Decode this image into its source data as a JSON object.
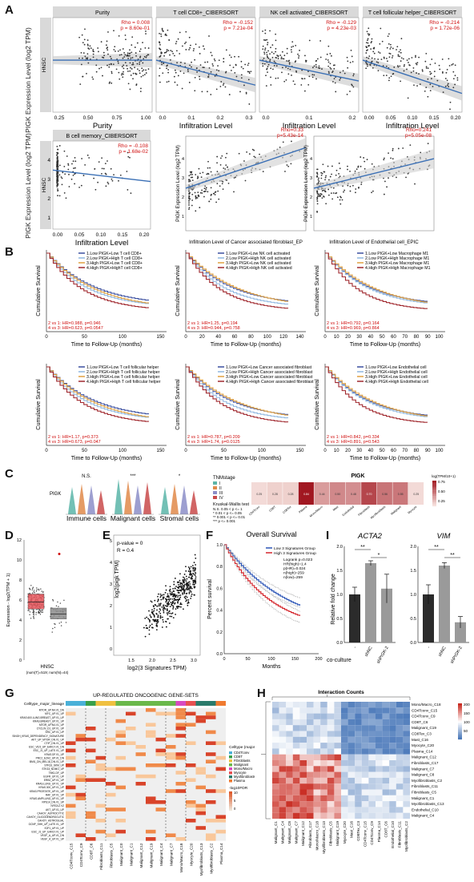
{
  "panels": {
    "A": "A",
    "B": "B",
    "C": "C",
    "D": "D",
    "E": "E",
    "F": "F",
    "G": "G",
    "H": "H",
    "I": "I"
  },
  "panel_a": {
    "ylabel": "PIGK Expression Level (log2 TPM)",
    "ylabel2": "PIGK Expression Level (log2 TPM)",
    "side_label": "HNSC",
    "row1": [
      {
        "title": "Purity",
        "rho": "Rho = 0.008",
        "p": "p = 8.60e-01",
        "xlabel": "Purity",
        "ticks": [
          "0.25",
          "0.50",
          "0.75",
          "1.00"
        ]
      },
      {
        "title": "T cell CD8+_CIBERSORT",
        "rho": "Rho = -0.152",
        "p": "p = 7.21e-04",
        "xlabel": "Infiltration Level",
        "ticks": [
          "0.0",
          "0.1",
          "0.2",
          "0.3"
        ]
      },
      {
        "title": "NK cell activated_CIBERSORT",
        "rho": "Rho = -0.129",
        "p": "p = 4.23e-03",
        "xlabel": "Infiltration Level",
        "ticks": [
          "0.0",
          "0.1",
          "0.2"
        ]
      },
      {
        "title": "T cell follicular helper_CIBERSORT",
        "rho": "Rho = -0.214",
        "p": "p = 1.72e-06",
        "xlabel": "Infiltration Level",
        "ticks": [
          "0.00",
          "0.05",
          "0.10",
          "0.15",
          "0.20"
        ]
      }
    ],
    "bcell": {
      "title": "B cell memory_CIBERSORT",
      "rho": "Rho = -0.108",
      "p": "p = 1.68e-02",
      "xlabel": "Infiltration Level",
      "ticks": [
        "0.00",
        "0.05",
        "0.10",
        "0.15",
        "0.20"
      ],
      "yticks": [
        "1",
        "2",
        "3",
        "4"
      ]
    },
    "caf": {
      "rho": "Rho=0.33",
      "p": "p=5.43e-14",
      "xlabel": "Infiltration Level of Cancer associated fibroblast_EP",
      "ylabel": "PIGK Expression Level (log2 TPM)"
    },
    "endo": {
      "rho": "Rho=0.241",
      "p": "p=5.05e-08",
      "xlabel": "Infiltration Level of Endothelial cell_EPIC",
      "ylabel": "PIGK Expression Level (log2 TPM)"
    },
    "yticks": [
      "1",
      "2",
      "3",
      "4"
    ]
  },
  "panel_b": {
    "ylabel": "Cumulative Survival",
    "xlabel": "Time to Follow-Up (months)",
    "xticks": [
      "0",
      "50",
      "100",
      "150"
    ],
    "xticks_mid": [
      "0",
      "20",
      "40",
      "60",
      "80",
      "100",
      "120",
      "140"
    ],
    "xticks_right": [
      "0",
      "10",
      "20",
      "30",
      "40",
      "50",
      "60",
      "70",
      "80",
      "90",
      "100"
    ],
    "plots": [
      {
        "legend": [
          "1.Low PIGK+Low T cell CD8+",
          "2.Low PIGK+High T cell CD8+",
          "3.High PIGK+Low T cell CD8+",
          "4.High PIGK+HighT cell CD8+"
        ],
        "stats": [
          "2 vs 1: HR=0.988, p=0.946",
          "4 vs 3: HR=0.623, p=0.0547"
        ]
      },
      {
        "legend": [
          "1.Low PIGK+Low NK cell activated",
          "2.Low PIGK+High NK cell activated",
          "3.High PIGK+Low NK cell activated",
          "4.High PIGK+High NK cell activated"
        ],
        "stats": [
          "2 vs 1: HR=1.25, p=0.194",
          "4 vs 3: HR=0.944, p=0.758"
        ]
      },
      {
        "legend": [
          "1.Low PIGK+Low Macrophage M1",
          "2.Low PIGK+High Macrophage M1",
          "3.High PIGK+Low Macrophage M1",
          "4.High PIGK+High Macrophage M1"
        ],
        "stats": [
          "2 vs 1: HR=0.792, p=0.164",
          "4 vs 3: HR=0.969, p=0.864"
        ]
      },
      {
        "legend": [
          "1.Low PIGK+Low T cell follicular helper",
          "2.Low PIGK+High T cell follicular helper",
          "3.High PIGK+Low T cell follicular helper",
          "4.High PIGK+High T cell follicular helper"
        ],
        "stats": [
          "2 vs 1: HR=1.17, p=0.373",
          "4 vs 3: HR=0.673, p=0.047"
        ]
      },
      {
        "legend": [
          "1.Low PIGK+Low Cancer associated fibroblast",
          "2.Low PIGK+High Cancer associated fibroblast",
          "3.High PIGK+Low Cancer associated fibroblast",
          "4.High PIGK+High Cancer associated fibroblast"
        ],
        "stats": [
          "2 vs 1: HR=0.787, p=0.209",
          "4 vs 3: HR=1.74, p=0.0125"
        ]
      },
      {
        "legend": [
          "1.Low PIGK+Low Endothelial cell",
          "2.Low PIGK+High Endothelial cell",
          "3.High PIGK+Low Endothelial cell",
          "4.High PIGK+High Endothelial cell"
        ],
        "stats": [
          "2 vs 1: HR=0.842, p=0.334",
          "4 vs 3: HR=0.891, p=0.543"
        ]
      }
    ],
    "colors": [
      "#3b4fa0",
      "#8fb7e0",
      "#e0a040",
      "#a0282e"
    ]
  },
  "panel_c": {
    "ylabel": "PIGK",
    "groups": [
      "Immune cells",
      "Malignant cells",
      "Stromal cells"
    ],
    "sig": [
      "N.S.",
      "***",
      "*"
    ],
    "legend_title": "TNMstage",
    "legend_items": [
      "I",
      "II",
      "III",
      "IV"
    ],
    "legend_colors": [
      "#5bb5a8",
      "#e08a4a",
      "#8c8ec8",
      "#c94a4a"
    ],
    "test_title": "Kruskal-Wallis test",
    "test_lines": [
      "N.S. 0.05 < p <= 1",
      "* 0.01 < p <= 0.05",
      "** 0.001 < p <= 0.01",
      "*** p <= 0.001"
    ],
    "heat_title": "PIGK",
    "heat_cells": [
      "0.25",
      "0.28",
      "0.28",
      "0.84",
      "0.44",
      "0.50",
      "0.48",
      "0.70",
      "0.56",
      "0.55",
      "0.25"
    ],
    "heat_values": [
      0.25,
      0.28,
      0.28,
      0.84,
      0.44,
      0.5,
      0.48,
      0.7,
      0.56,
      0.55,
      0.25
    ],
    "heat_cols": [
      "CD4Tconv",
      "CD8T",
      "CD8Tex",
      "Plasma",
      "Mono/Macro",
      "Mast",
      "Endothelial",
      "Fibroblasts",
      "Myofibroblasts",
      "Malignant",
      "Myocyte"
    ],
    "scale_title": "log(TPM/10+1)",
    "scale_ticks": [
      "0.75",
      "0.50",
      "0.25"
    ]
  },
  "panel_d": {
    "ylabel": "Expression - log2(TPM + 1)",
    "yticks": [
      "0",
      "2",
      "4",
      "6",
      "8",
      "10",
      "12"
    ],
    "xlabel": "HNSC",
    "note": "(num(T)=519; num(N)=44)",
    "chart_data": {
      "type": "box",
      "categories": [
        "Tumor",
        "Normal"
      ],
      "median": [
        5.8,
        4.6
      ],
      "q1": [
        5.1,
        4.1
      ],
      "q3": [
        6.6,
        5.2
      ],
      "colors": [
        "#e8595f",
        "#8a8a8a"
      ]
    }
  },
  "panel_e": {
    "xlabel": "log2(3 Signatures TPM)",
    "ylabel": "log2(pigk TPM)",
    "xticks": [
      "1.5",
      "2.0",
      "2.5",
      "3.0"
    ],
    "yticks": [
      "0",
      "1",
      "2",
      "3",
      "4",
      "5"
    ],
    "pval": "p-value = 0",
    "r": "R = 0.4"
  },
  "panel_f": {
    "title": "Overall Survival",
    "ylabel": "Percent survival",
    "xlabel": "Months",
    "xticks": [
      "0",
      "50",
      "100",
      "150",
      "200"
    ],
    "yticks": [
      "0.0",
      "0.2",
      "0.4",
      "0.6",
      "0.8",
      "1.0"
    ],
    "legend": [
      "Low 3 Signatures Group",
      "High 3 Signatures Group"
    ],
    "colors": [
      "#2b54b6",
      "#d4262c"
    ],
    "stats": [
      "Logrank p=0.023",
      "HR(high)=1.4",
      "p(HR)=0.024",
      "n(high)=259",
      "n(low)=259"
    ]
  },
  "panel_i": {
    "ylabel": "Relative fold change",
    "coculture": "co-culture",
    "charts": [
      {
        "title": "ACTA2",
        "cats": [
          "-",
          "shNC",
          "shPIGK-2"
        ],
        "values": [
          1.0,
          1.65,
          1.12
        ],
        "errs": [
          0.15,
          0.05,
          0.3
        ],
        "sig": [
          "**",
          "*"
        ],
        "yticks": [
          "0.0",
          "0.5",
          "1.0",
          "1.5",
          "2.0"
        ],
        "ylim": [
          0,
          2.0
        ]
      },
      {
        "title": "VIM",
        "cats": [
          "-",
          "shNC",
          "shPIGK-2"
        ],
        "values": [
          1.0,
          1.6,
          0.42
        ],
        "errs": [
          0.2,
          0.06,
          0.12
        ],
        "sig": [
          "**",
          "**"
        ],
        "yticks": [
          "0.0",
          "0.5",
          "1.0",
          "1.5",
          "2.0"
        ],
        "ylim": [
          0,
          2.0
        ]
      }
    ],
    "colors": [
      "#2b2b2b",
      "#9a9a9a",
      "#9a9a9a"
    ]
  },
  "panel_g": {
    "title": "UP-REGULATED ONCOGENIC GENE-SETS",
    "header_label": "Celltype_major_lineage",
    "rows": [
      "MTOR_UP.N4.V1_DN",
      "MYC_UP.V1_UP",
      "KRAS.600.LUNG.BREAST_UP.V1_UP",
      "KRAS.BREAST_UP.V1_UP",
      "MTOR_UP.N4.V1_UP",
      "CYCLIN_D1_UP.V1_UP",
      "SRC_UP.V1_UP",
      "SINGH_KRAS_DEPENDENCY_SIGNATURE",
      "AKT_UP_MTOR_DN.V1_UP",
      "CTIP_DN.V1_UP",
      "ESC_V6.5_UP_EARLY.V1_DN",
      "ESC_J1_UP_LATE.V1_UP",
      "KRAS.DF.V1_UP",
      "PRC2_EZH2_UP.V1_DN",
      "BMI1_DN_MEL18_DN.V1_UP",
      "STK33_SKM_UP",
      "STK33_NOMO_UP",
      "TBK1.DF_UP",
      "EGFR_UP.V1_UP",
      "ERB2_UP.V1_UP",
      "KRAS.LUNG_UP.V1_UP",
      "KRAS.300_UP.V1_UP",
      "KRAS.PROSTATE_UP.V1_UP",
      "RAF_UP.V1_UP",
      "KRAS.AMP.LUNG_UP.V1_UP",
      "RPS14_DN.V1_UP",
      "NFE2L2.V2",
      "AKT_UP.V1_UP",
      "CAHOY_ASTROCYTIC",
      "CAHOY_OLIGODENDROCUTIC",
      "CAHOY_ASTROGLIAL",
      "GCNP_SHH_UP_LATE.V1_UP",
      "E2F1_UP.V1_UP",
      "ESC_J1_UP_EARLY.V1_UP",
      "VEGF_A_UP.V1_DN",
      "VEGF_A_UP.V1_UP"
    ],
    "cols": [
      "CD4Tconv_C15",
      "CD4Tconv_C9",
      "CD8T_C6",
      "Fibroblasts_C11",
      "Fibroblasts_C5",
      "Malignant_C0",
      "Malignant_C1",
      "Malignant_C12",
      "Malignant_C19",
      "Malignant_C4",
      "Malignant_C7",
      "Mono/Macro_C18",
      "Myocyte_C20",
      "Myofibroblasts_C13",
      "Myofibroblasts_C2",
      "Plasma_C14"
    ],
    "lineage_colors": [
      "#4ab0d8",
      "#4ab0d8",
      "#3aa04a",
      "#f0c040",
      "#f0c040",
      "#6ab84a",
      "#6ab84a",
      "#6ab84a",
      "#6ab84a",
      "#6ab84a",
      "#6ab84a",
      "#d84ac0",
      "#e85050",
      "#2a7a6a",
      "#2a7a6a",
      "#f07a30"
    ],
    "legend_title": "Celltype (major-lineage)",
    "legend_items": [
      "CD4Tconv",
      "CD8T",
      "Fibroblasts",
      "Malignant",
      "Mono/Macro",
      "Myocyte",
      "Myofibroblasts",
      "Plasma"
    ],
    "legend_colors": [
      "#4ab0d8",
      "#3aa04a",
      "#f0c040",
      "#6ab84a",
      "#d84ac0",
      "#e85050",
      "#2a7a6a",
      "#f07a30"
    ],
    "scale_title": "-log10FDR",
    "scale_ticks": [
      "10",
      "5",
      "0"
    ]
  },
  "panel_h": {
    "title": "Interaction Counts",
    "rows": [
      "Mono/Macro_C18",
      "CD4Tconv_C15",
      "CD4Tconv_C9",
      "CD8T_C6",
      "Malignant_C19",
      "CD8Tex_C3",
      "Mast_C16",
      "Myocyte_C20",
      "Plasma_C14",
      "Malignant_C12",
      "Fibroblasts_C17",
      "Malignant_C7",
      "Malignant_C8",
      "Myofibroblasts_C2",
      "Fibroblasts_C11",
      "Fibroblasts_C5",
      "Malignant_C1",
      "Myofibroblasts_C13",
      "Endothelial_C10",
      "Malignant_C4"
    ],
    "cols": [
      "Malignant_C1",
      "Malignant_C4",
      "Malignant_C8",
      "Malignant_C7",
      "Malignant_C12",
      "Fibroblasts_C17",
      "Mono/Macro_C18",
      "Myofibroblasts_C13",
      "Fibroblasts_C5",
      "Malignant_C19",
      "Myocyte_C20",
      "Mast_C16",
      "CD8Tex_C3",
      "CD4Tconv_C15",
      "CD4Tconv_C9",
      "Plasma_C14",
      "CD8T_C6",
      "Endothelial_C10",
      "Fibroblasts_C11",
      "Myofibroblasts_C2"
    ],
    "scale_ticks": [
      "200",
      "150",
      "100",
      "50"
    ],
    "scale_range": [
      0,
      200
    ]
  }
}
